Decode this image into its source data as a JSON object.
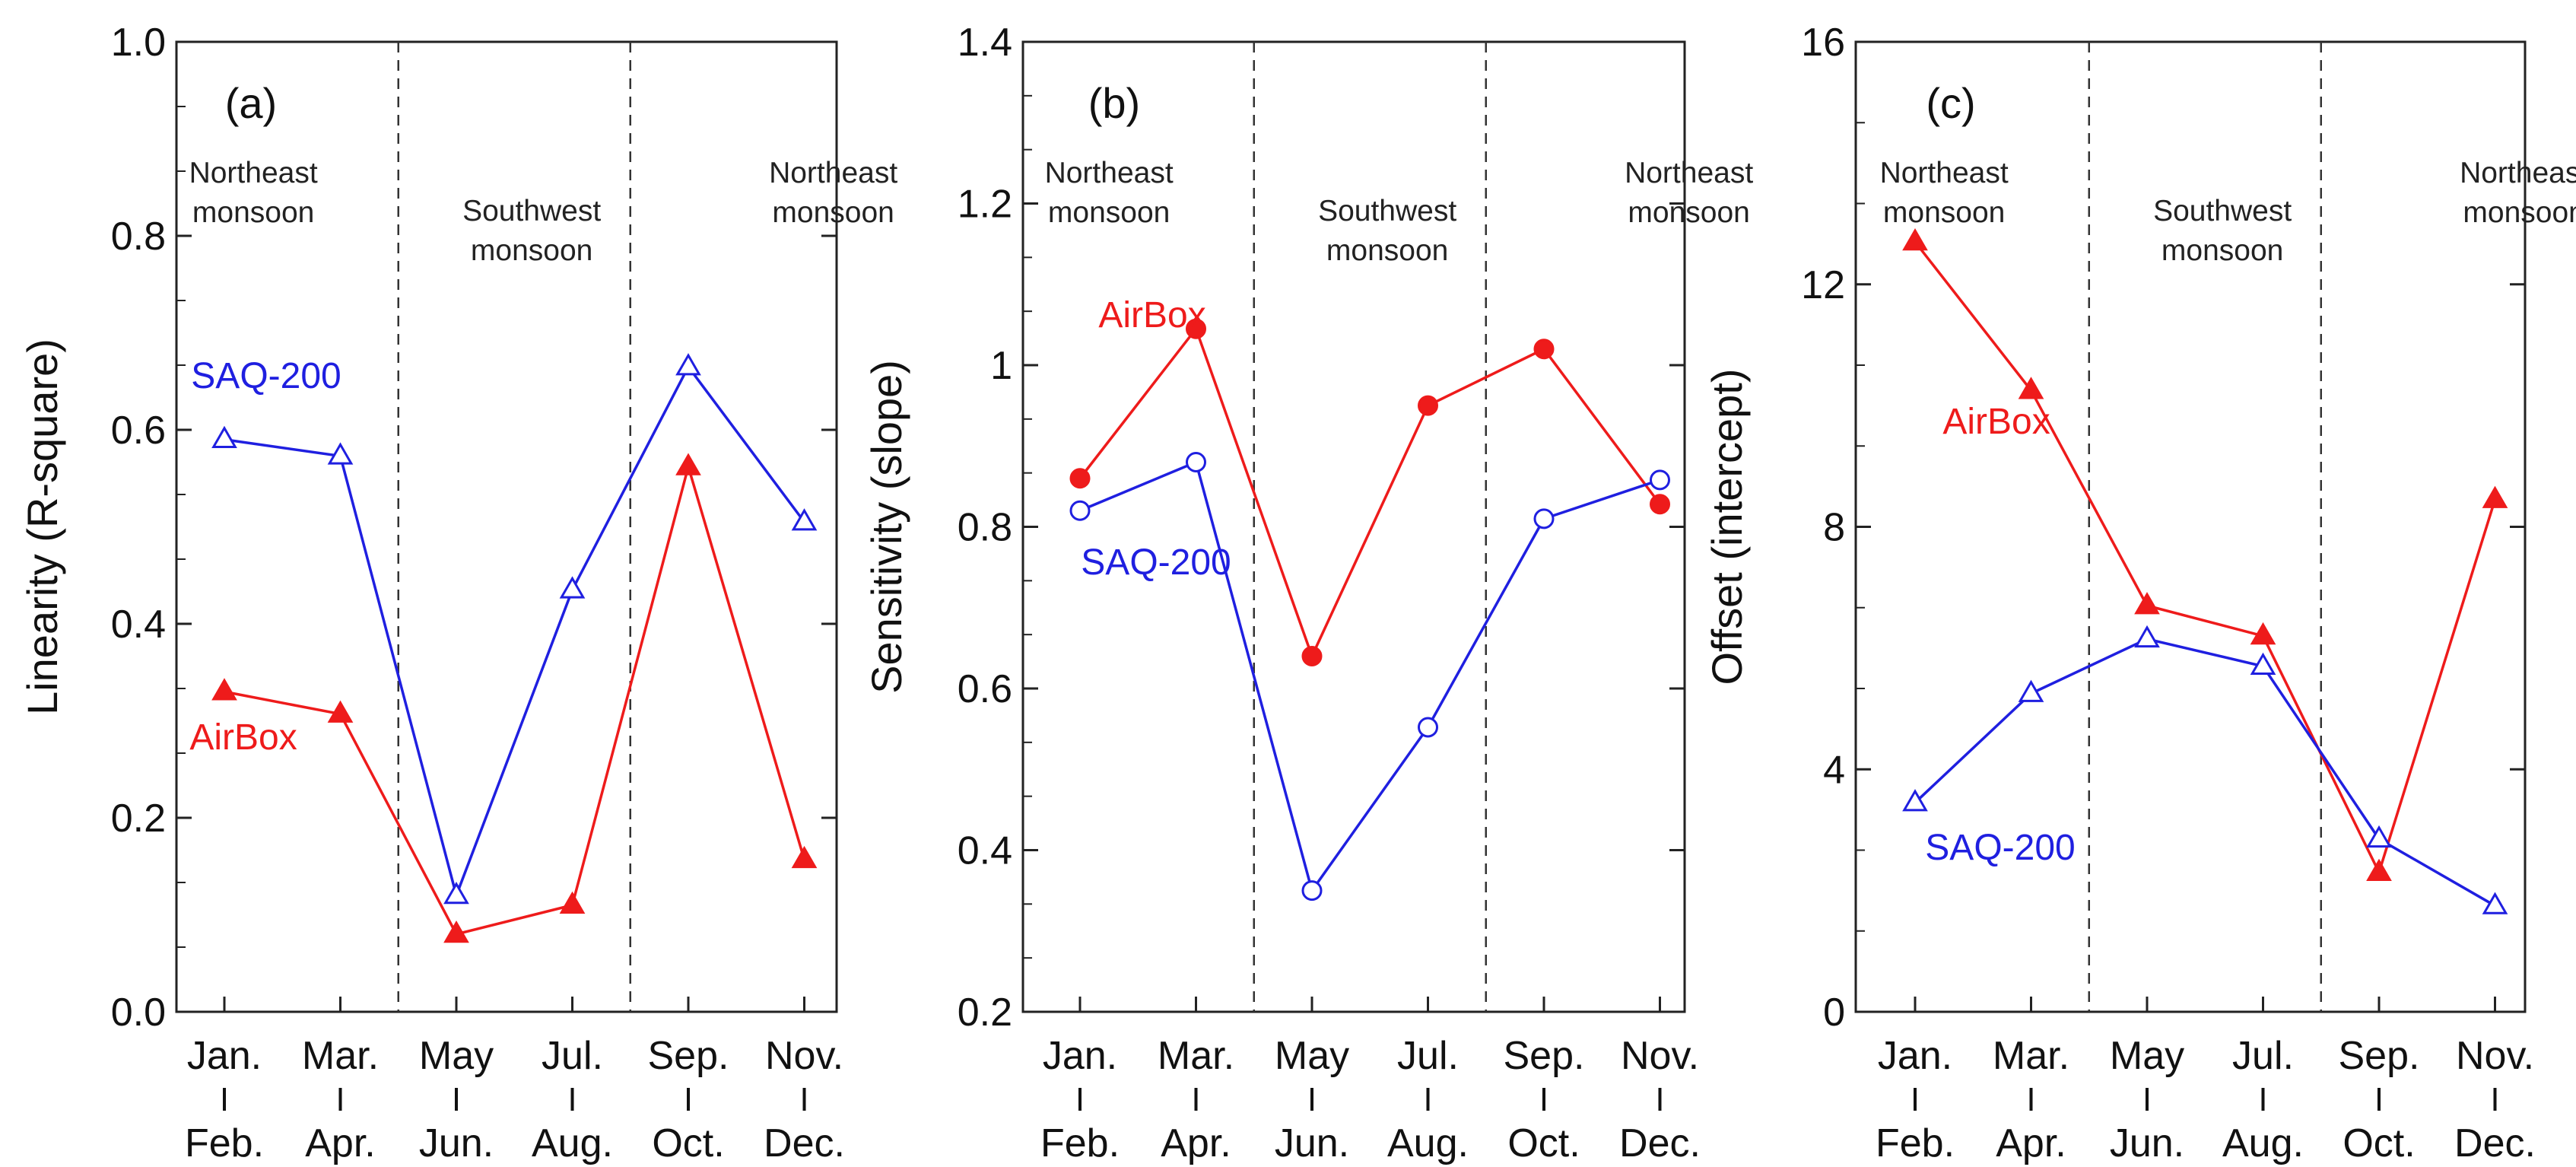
{
  "chart_data": [
    {
      "type": "line",
      "panel_label": "(a)",
      "ylabel": "Linearity (R-square)",
      "ylim": [
        0,
        1
      ],
      "yticks": [
        "0.0",
        "0.2",
        "0.4",
        "0.6",
        "0.8",
        "1.0"
      ],
      "ytick_values": [
        0,
        0.2,
        0.4,
        0.6,
        0.8,
        1.0
      ],
      "categories_top": [
        "Jan.",
        "Mar.",
        "May",
        "Jul.",
        "Sep.",
        "Nov."
      ],
      "categories_bottom": [
        "Feb.",
        "Apr.",
        "Jun.",
        "Aug.",
        "Oct.",
        "Dec."
      ],
      "regions": [
        {
          "lines": [
            "Northeast",
            "monsoon"
          ]
        },
        {
          "lines": [
            "Southwest",
            "monsoon"
          ]
        },
        {
          "lines": [
            "Northeast",
            "monsoon"
          ]
        }
      ],
      "series": [
        {
          "name": "SAQ-200",
          "color": "#1f1fe0",
          "marker": "triangle-open",
          "values": [
            0.59,
            0.573,
            0.12,
            0.435,
            0.665,
            0.505
          ]
        },
        {
          "name": "AirBox",
          "color": "#ee1b1b",
          "marker": "triangle-filled",
          "values": [
            0.33,
            0.307,
            0.08,
            0.11,
            0.562,
            0.157
          ]
        }
      ]
    },
    {
      "type": "line",
      "panel_label": "(b)",
      "ylabel": "Sensitivity (slope)",
      "ylim": [
        0.2,
        1.4
      ],
      "yticks": [
        "0.2",
        "0.4",
        "0.6",
        "0.8",
        "1",
        "1.2",
        "1.4"
      ],
      "ytick_values": [
        0.2,
        0.4,
        0.6,
        0.8,
        1.0,
        1.2,
        1.4
      ],
      "categories_top": [
        "Jan.",
        "Mar.",
        "May",
        "Jul.",
        "Sep.",
        "Nov."
      ],
      "categories_bottom": [
        "Feb.",
        "Apr.",
        "Jun.",
        "Aug.",
        "Oct.",
        "Dec."
      ],
      "regions": [
        {
          "lines": [
            "Northeast",
            "monsoon"
          ]
        },
        {
          "lines": [
            "Southwest",
            "monsoon"
          ]
        },
        {
          "lines": [
            "Northeast",
            "monsoon"
          ]
        }
      ],
      "series": [
        {
          "name": "AirBox",
          "color": "#ee1b1b",
          "marker": "circle-filled",
          "values": [
            0.86,
            1.045,
            0.64,
            0.95,
            1.02,
            0.828
          ]
        },
        {
          "name": "SAQ-200",
          "color": "#1f1fe0",
          "marker": "circle-open",
          "values": [
            0.82,
            0.88,
            0.35,
            0.552,
            0.81,
            0.858
          ]
        }
      ]
    },
    {
      "type": "line",
      "panel_label": "(c)",
      "ylabel": "Offset (intercept)",
      "ylim": [
        0,
        16
      ],
      "yticks": [
        "0",
        "4",
        "8",
        "12",
        "16"
      ],
      "ytick_values": [
        0,
        4,
        8,
        12,
        16
      ],
      "categories_top": [
        "Jan.",
        "Mar.",
        "May",
        "Jul.",
        "Sep.",
        "Nov."
      ],
      "categories_bottom": [
        "Feb.",
        "Apr.",
        "Jun.",
        "Aug.",
        "Oct.",
        "Dec."
      ],
      "regions": [
        {
          "lines": [
            "Northeast",
            "monsoon"
          ]
        },
        {
          "lines": [
            "Southwest",
            "monsoon"
          ]
        },
        {
          "lines": [
            "Northeast",
            "monsoon"
          ]
        }
      ],
      "series": [
        {
          "name": "AirBox",
          "color": "#ee1b1b",
          "marker": "triangle-filled",
          "values": [
            12.7,
            10.25,
            6.7,
            6.2,
            2.3,
            8.45
          ]
        },
        {
          "name": "SAQ-200",
          "color": "#1f1fe0",
          "marker": "triangle-open",
          "values": [
            3.45,
            5.25,
            6.15,
            5.7,
            2.85,
            1.75
          ]
        }
      ]
    }
  ]
}
